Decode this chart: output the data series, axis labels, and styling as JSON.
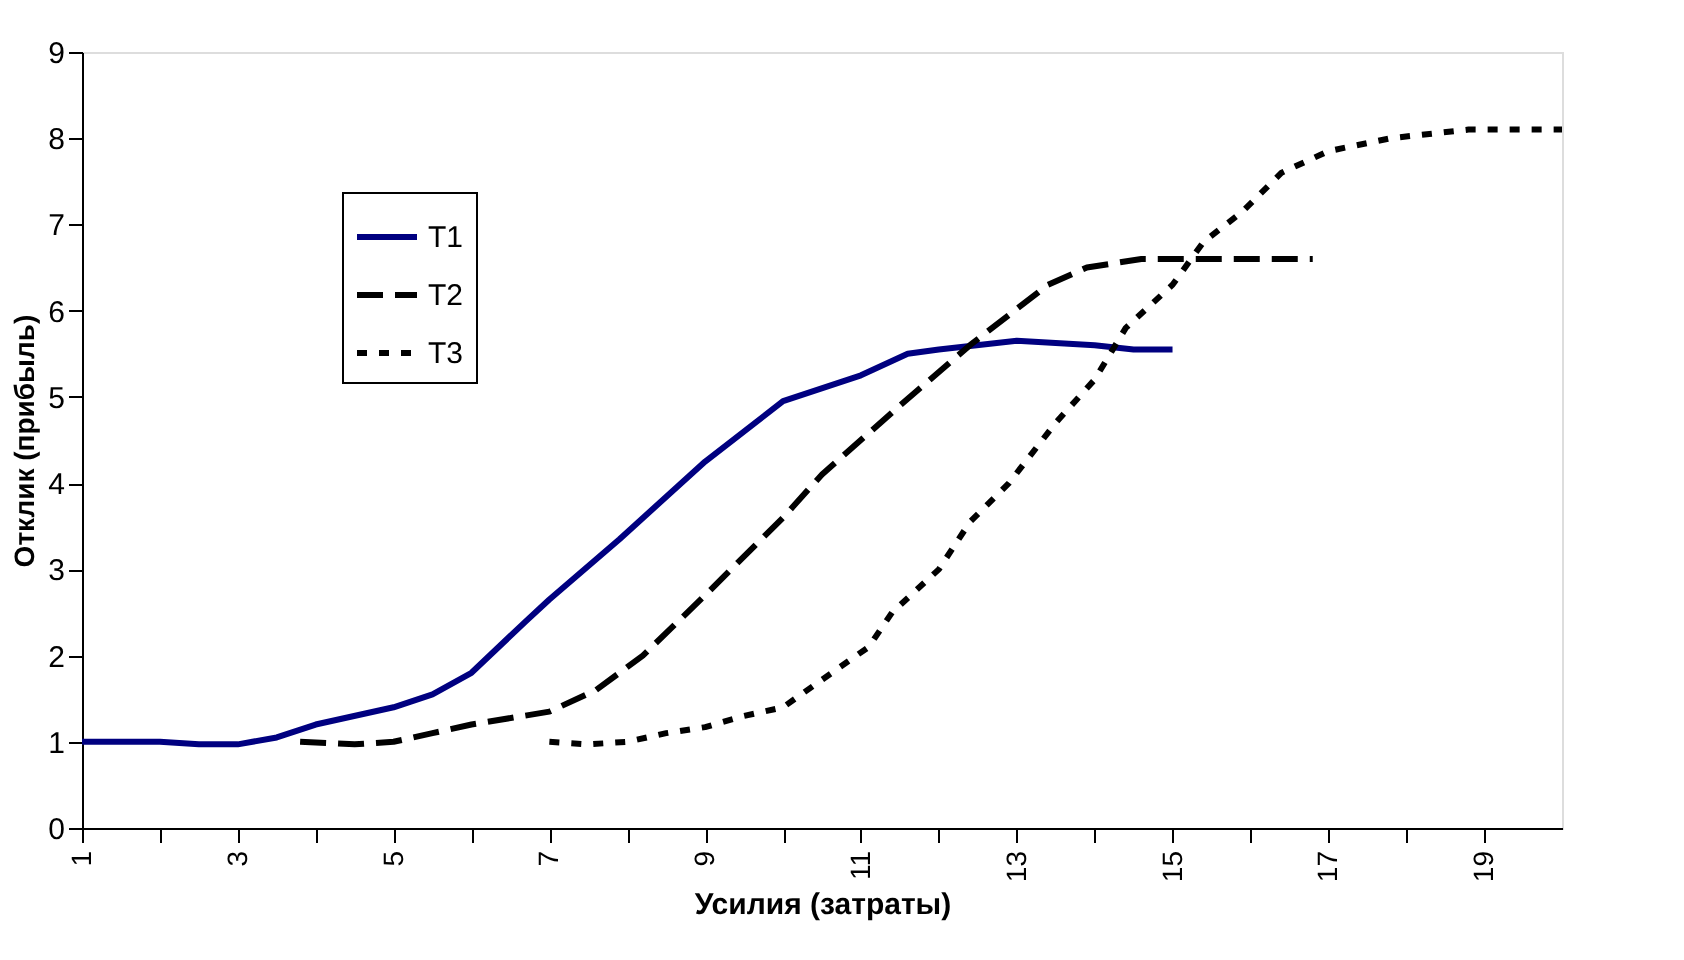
{
  "chart_data": {
    "type": "line",
    "xlabel": "Усилия (затраты)",
    "ylabel": "Отклик (прибыль)",
    "xlim": [
      1,
      20
    ],
    "ylim": [
      0,
      9
    ],
    "xticks": [
      1,
      {
        "value": 2,
        "label": null
      },
      3,
      {
        "value": 4,
        "label": null
      },
      5,
      {
        "value": 6,
        "label": null
      },
      7,
      {
        "value": 8,
        "label": null
      },
      9,
      {
        "value": 10,
        "label": null
      },
      11,
      {
        "value": 12,
        "label": null
      },
      13,
      {
        "value": 14,
        "label": null
      },
      15,
      {
        "value": 16,
        "label": null
      },
      17,
      {
        "value": 18,
        "label": null
      },
      19
    ],
    "yticks": [
      0,
      1,
      2,
      3,
      4,
      5,
      6,
      7,
      8,
      9
    ],
    "grid": false,
    "legend": "top left",
    "marker": "none",
    "series": [
      {
        "name": "T1",
        "color": "#000080",
        "line_style": "solid",
        "x": [
          1,
          2,
          2.5,
          3,
          3.5,
          4,
          5,
          5.5,
          6,
          6.7,
          7,
          7.9,
          9,
          10,
          11,
          11.6,
          12,
          13,
          14,
          14.5,
          15
        ],
        "values": [
          1,
          1,
          0.97,
          0.97,
          1.05,
          1.2,
          1.4,
          1.55,
          1.8,
          2.4,
          2.65,
          3.35,
          4.25,
          4.95,
          5.25,
          5.5,
          5.55,
          5.65,
          5.6,
          5.55,
          5.55
        ]
      },
      {
        "name": "T2",
        "color": "#000000",
        "line_style": "dashed",
        "x": [
          3.8,
          4.5,
          5,
          5.5,
          6,
          7,
          7.6,
          8.2,
          9,
          10,
          10.5,
          11.5,
          12.4,
          13.4,
          13.9,
          14.6,
          16.8
        ],
        "values": [
          1,
          0.97,
          1.0,
          1.1,
          1.2,
          1.35,
          1.6,
          2.0,
          2.7,
          3.6,
          4.1,
          4.9,
          5.6,
          6.3,
          6.5,
          6.6,
          6.6
        ]
      },
      {
        "name": "T3",
        "color": "#000000",
        "line_style": "dotted",
        "x": [
          7,
          7.5,
          8,
          8.5,
          9,
          9.5,
          10,
          10.5,
          11.1,
          11.4,
          12,
          12.4,
          12.9,
          13.5,
          14,
          14.4,
          15,
          15.4,
          15.9,
          16.4,
          17,
          17.8,
          18.8,
          20
        ],
        "values": [
          1.0,
          0.97,
          1.0,
          1.1,
          1.17,
          1.3,
          1.4,
          1.72,
          2.1,
          2.5,
          3.0,
          3.55,
          4.0,
          4.7,
          5.2,
          5.8,
          6.3,
          6.8,
          7.15,
          7.6,
          7.85,
          8.0,
          8.1,
          8.1
        ]
      }
    ]
  }
}
